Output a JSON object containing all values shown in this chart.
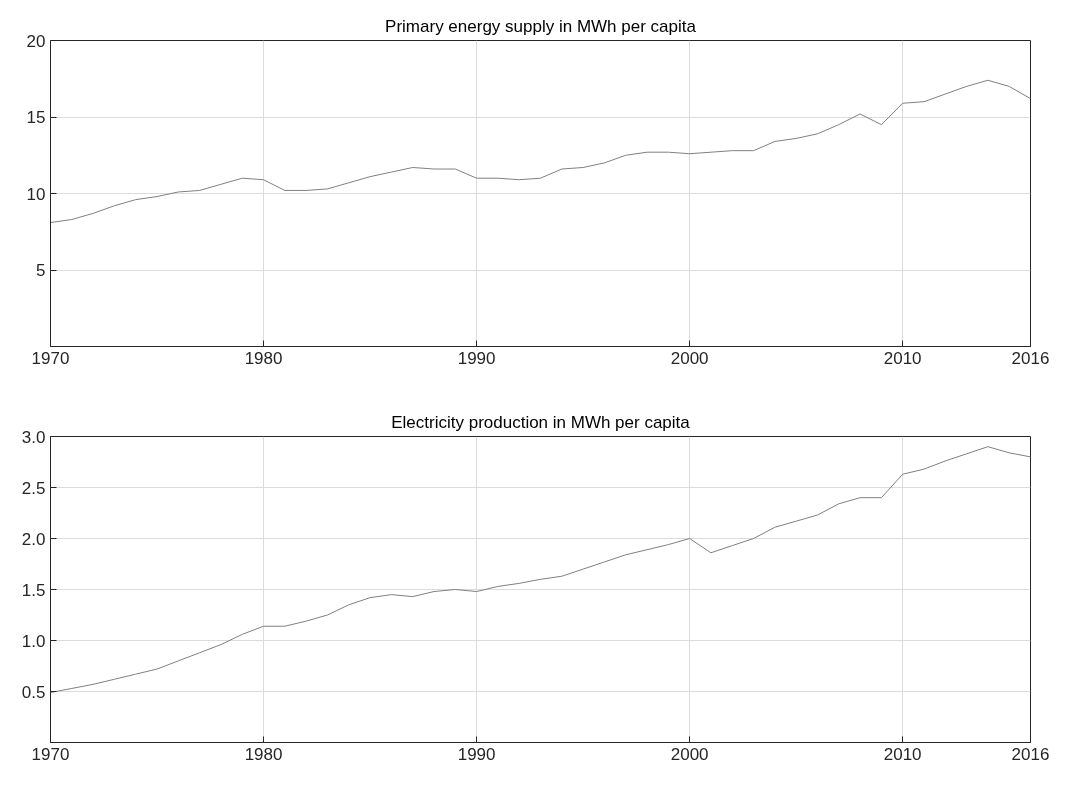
{
  "chart_data": [
    {
      "type": "line",
      "title": "Primary energy supply in MWh per capita",
      "x": [
        1970,
        1971,
        1972,
        1973,
        1974,
        1975,
        1976,
        1977,
        1978,
        1979,
        1980,
        1981,
        1982,
        1983,
        1984,
        1985,
        1986,
        1987,
        1988,
        1989,
        1990,
        1991,
        1992,
        1993,
        1994,
        1995,
        1996,
        1997,
        1998,
        1999,
        2000,
        2001,
        2002,
        2003,
        2004,
        2005,
        2006,
        2007,
        2008,
        2009,
        2010,
        2011,
        2012,
        2013,
        2014,
        2015,
        2016
      ],
      "series": [
        {
          "color": "#808080",
          "values": [
            8.1,
            8.3,
            8.7,
            9.2,
            9.6,
            9.8,
            10.1,
            10.2,
            10.6,
            11.0,
            10.9,
            10.2,
            10.2,
            10.3,
            10.7,
            11.1,
            11.4,
            11.7,
            11.6,
            11.6,
            11.0,
            11.0,
            10.9,
            11.0,
            11.6,
            11.7,
            12.0,
            12.5,
            12.7,
            12.7,
            12.6,
            12.7,
            12.8,
            12.8,
            13.4,
            13.6,
            13.9,
            14.5,
            15.2,
            14.5,
            15.9,
            16.0,
            16.5,
            17.0,
            17.4,
            17.0,
            16.2
          ]
        }
      ],
      "xlim": [
        1970,
        2016
      ],
      "xticks": [
        1970,
        1980,
        1990,
        2000,
        2010,
        2016
      ],
      "ylim": [
        0,
        20
      ],
      "yticks": [
        5,
        10,
        15,
        20
      ],
      "grid": true,
      "line_style": "solid"
    },
    {
      "type": "line",
      "title": "Electricity production in MWh per capita",
      "x": [
        1970,
        1971,
        1972,
        1973,
        1974,
        1975,
        1976,
        1977,
        1978,
        1979,
        1980,
        1981,
        1982,
        1983,
        1984,
        1985,
        1986,
        1987,
        1988,
        1989,
        1990,
        1991,
        1992,
        1993,
        1994,
        1995,
        1996,
        1997,
        1998,
        1999,
        2000,
        2001,
        2002,
        2003,
        2004,
        2005,
        2006,
        2007,
        2008,
        2009,
        2010,
        2011,
        2012,
        2013,
        2014,
        2015,
        2016
      ],
      "series": [
        {
          "color": "#808080",
          "values": [
            0.49,
            0.53,
            0.57,
            0.62,
            0.67,
            0.72,
            0.8,
            0.88,
            0.96,
            1.06,
            1.14,
            1.14,
            1.19,
            1.25,
            1.35,
            1.42,
            1.45,
            1.43,
            1.48,
            1.5,
            1.48,
            1.53,
            1.56,
            1.6,
            1.63,
            1.7,
            1.77,
            1.84,
            1.89,
            1.94,
            2.0,
            1.86,
            1.93,
            2.0,
            2.11,
            2.17,
            2.23,
            2.34,
            2.4,
            2.4,
            2.63,
            2.68,
            2.76,
            2.83,
            2.9,
            2.84,
            2.8
          ]
        }
      ],
      "xlim": [
        1970,
        2016
      ],
      "xticks": [
        1970,
        1980,
        1990,
        2000,
        2010,
        2016
      ],
      "ylim": [
        0,
        3
      ],
      "yticks": [
        0.5,
        {
          "value": 1,
          "label": "1.0"
        },
        1.5,
        {
          "value": 2,
          "label": "2.0"
        },
        2.5,
        {
          "value": 3,
          "label": "3.0"
        }
      ],
      "grid": true,
      "line_style": "solid"
    }
  ]
}
